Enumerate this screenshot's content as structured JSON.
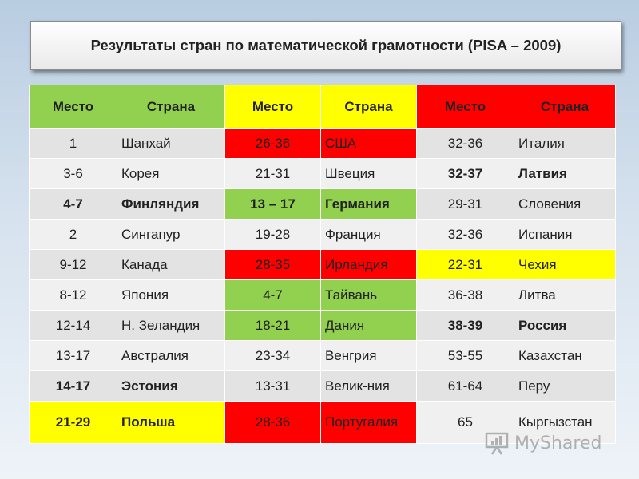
{
  "title": "Результаты стран по математической грамотности (PISA – 2009)",
  "colors": {
    "green": "#92d050",
    "yellow": "#ffff00",
    "red": "#ff0000"
  },
  "headers": [
    {
      "text": "Место",
      "color": "green"
    },
    {
      "text": "Страна",
      "color": "green"
    },
    {
      "text": "Место",
      "color": "yellow"
    },
    {
      "text": "Страна",
      "color": "yellow"
    },
    {
      "text": "Место",
      "color": "red"
    },
    {
      "text": "Страна",
      "color": "red"
    }
  ],
  "rows": [
    {
      "cells": [
        {
          "text": "1"
        },
        {
          "text": "Шанхай"
        },
        {
          "text": "26-36",
          "hl": "red"
        },
        {
          "text": "США",
          "hl": "red"
        },
        {
          "text": "32-36"
        },
        {
          "text": "Италия"
        }
      ]
    },
    {
      "cells": [
        {
          "text": "3-6"
        },
        {
          "text": " Корея"
        },
        {
          "text": "21-31"
        },
        {
          "text": "Швеция"
        },
        {
          "text": "32-37",
          "bold": true
        },
        {
          "text": "Латвия",
          "bold": true
        }
      ]
    },
    {
      "cells": [
        {
          "text": "4-7",
          "bold": true
        },
        {
          "text": "Финляндия",
          "bold": true
        },
        {
          "text": "13 – 17",
          "bold": true,
          "hl": "green"
        },
        {
          "text": "Германия",
          "bold": true,
          "hl": "green"
        },
        {
          "text": "29-31"
        },
        {
          "text": "Словения"
        }
      ]
    },
    {
      "cells": [
        {
          "text": "2"
        },
        {
          "text": "Сингапур"
        },
        {
          "text": "19-28"
        },
        {
          "text": "Франция"
        },
        {
          "text": "32-36"
        },
        {
          "text": "Испания"
        }
      ]
    },
    {
      "cells": [
        {
          "text": "9-12"
        },
        {
          "text": "Канада"
        },
        {
          "text": "28-35",
          "hl": "red"
        },
        {
          "text": "Ирландия",
          "hl": "red"
        },
        {
          "text": "22-31",
          "hl": "yellow"
        },
        {
          "text": "Чехия",
          "hl": "yellow"
        }
      ]
    },
    {
      "cells": [
        {
          "text": "8-12"
        },
        {
          "text": "Япония"
        },
        {
          "text": "4-7",
          "hl": "green"
        },
        {
          "text": "Тайвань",
          "hl": "green"
        },
        {
          "text": "36-38"
        },
        {
          "text": "Литва"
        }
      ]
    },
    {
      "cells": [
        {
          "text": "12-14"
        },
        {
          "text": "Н. Зеландия"
        },
        {
          "text": "18-21",
          "hl": "green"
        },
        {
          "text": "Дания",
          "hl": "green"
        },
        {
          "text": "38-39",
          "bold": true
        },
        {
          "text": "Россия",
          "bold": true
        }
      ]
    },
    {
      "cells": [
        {
          "text": "13-17"
        },
        {
          "text": "Австралия"
        },
        {
          "text": "23-34"
        },
        {
          "text": "Венгрия"
        },
        {
          "text": "53-55"
        },
        {
          "text": "Казахстан"
        }
      ]
    },
    {
      "cells": [
        {
          "text": "14-17",
          "bold": true
        },
        {
          "text": "Эстония",
          "bold": true
        },
        {
          "text": "13-31"
        },
        {
          "text": "Велик-ния"
        },
        {
          "text": "61-64"
        },
        {
          "text": "Перу"
        }
      ]
    },
    {
      "cells": [
        {
          "text": "21-29",
          "bold": true,
          "hl": "yellow"
        },
        {
          "text": "Польша",
          "bold": true,
          "hl": "yellow"
        },
        {
          "text": "28-36",
          "hl": "red"
        },
        {
          "text": "Португалия",
          "hl": "red"
        },
        {
          "text": "65"
        },
        {
          "text": "Кыргызстан"
        }
      ]
    }
  ],
  "watermark": {
    "text": "MyShared",
    "icon": "presentation-board-icon"
  }
}
